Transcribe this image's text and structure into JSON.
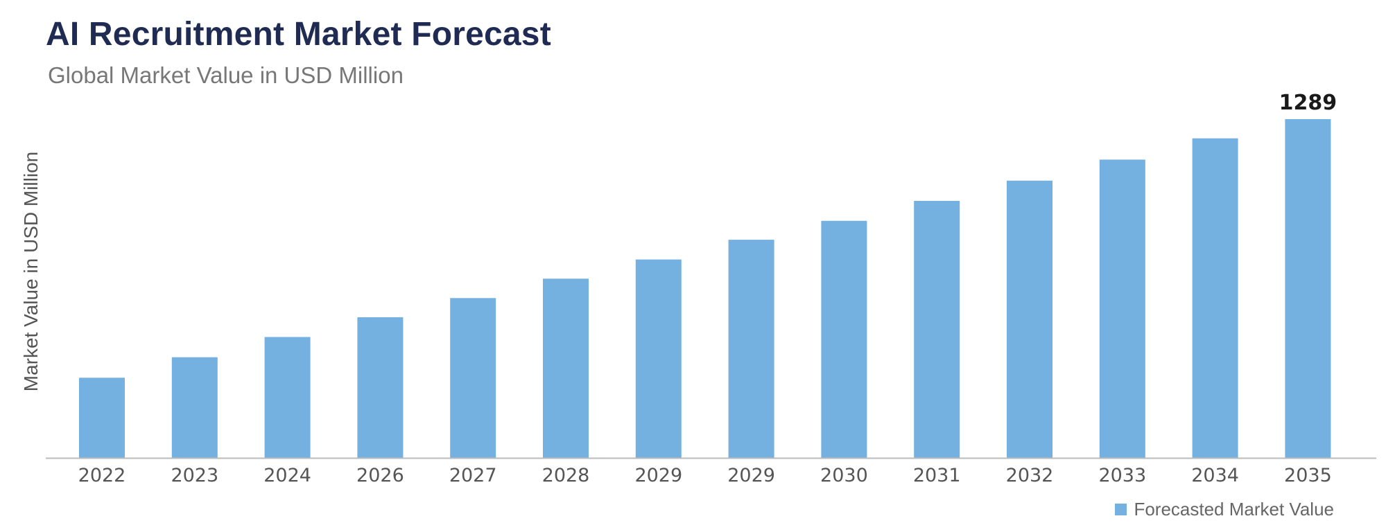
{
  "header": {
    "title": "AI Recruitment Market Forecast",
    "subtitle": "Global Market Value in USD Million"
  },
  "colors": {
    "bar": "#74b0e0",
    "title": "#1f2b52",
    "axis": "#bbbbbb"
  },
  "chart_data": {
    "type": "bar",
    "title": "AI Recruitment Market Forecast",
    "subtitle": "Global Market Value in USD Million",
    "xlabel": "",
    "ylabel": "Market Value in USD Million",
    "categories": [
      "2022",
      "2023",
      "2024",
      "2026",
      "2027",
      "2028",
      "2029",
      "2029",
      "2030",
      "2031",
      "2032",
      "2033",
      "2034",
      "2035"
    ],
    "series": [
      {
        "name": "Forecasted Market Value",
        "values": [
          305,
          383,
          460,
          535,
          608,
          682,
          755,
          830,
          902,
          978,
          1055,
          1135,
          1216,
          1289
        ]
      }
    ],
    "data_labels": [
      {
        "index": 13,
        "text": "1289"
      }
    ],
    "ylim": [
      0,
      1300
    ],
    "grid": false,
    "legend": "bottom-right"
  }
}
